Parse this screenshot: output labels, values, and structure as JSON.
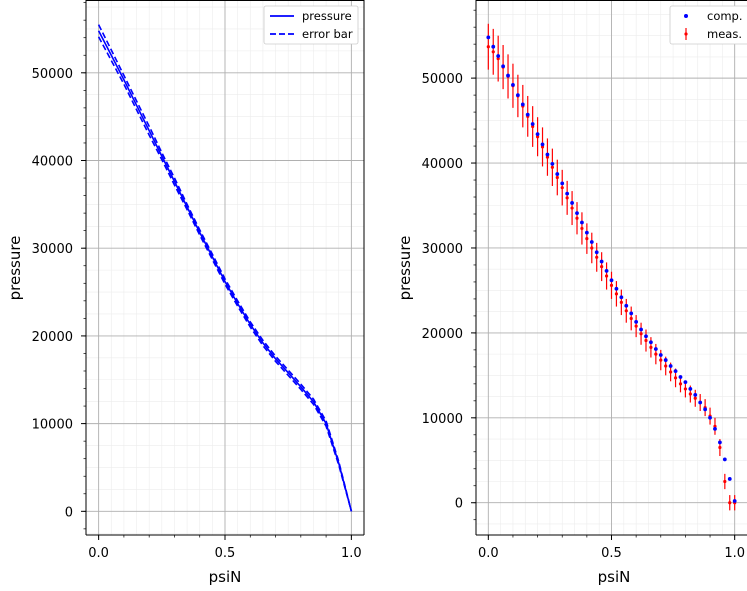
{
  "figure": {
    "background": "#ffffff"
  },
  "chart_data": [
    {
      "type": "line",
      "xlabel": "psiN",
      "ylabel": "pressure",
      "xlim": [
        -0.05,
        1.05
      ],
      "ylim": [
        -2700,
        58300
      ],
      "xticks": [
        0.0,
        0.5,
        1.0
      ],
      "xtick_labels": [
        "0.0",
        "0.5",
        "1.0"
      ],
      "yticks": [
        0,
        10000,
        20000,
        30000,
        40000,
        50000
      ],
      "ytick_labels": [
        "0",
        "10000",
        "20000",
        "30000",
        "40000",
        "50000"
      ],
      "grid": true,
      "legend": {
        "placement": "top-right",
        "entries": [
          "pressure",
          "error bar"
        ]
      },
      "series": [
        {
          "name": "pressure",
          "style": "solid",
          "color": "#0000ff",
          "x": [
            0.0,
            0.05,
            0.1,
            0.15,
            0.2,
            0.25,
            0.3,
            0.35,
            0.4,
            0.45,
            0.5,
            0.55,
            0.6,
            0.65,
            0.7,
            0.75,
            0.8,
            0.85,
            0.9,
            0.95,
            1.0
          ],
          "y": [
            54800,
            52000,
            49200,
            46300,
            43400,
            40500,
            37600,
            34700,
            31800,
            29000,
            26200,
            23700,
            21300,
            19200,
            17400,
            15800,
            14200,
            12500,
            10000,
            5500,
            0
          ]
        },
        {
          "name": "error bar",
          "style": "dashed",
          "color": "#0000ff",
          "x": [
            0.0,
            0.05,
            0.1,
            0.15,
            0.2,
            0.25,
            0.3,
            0.35,
            0.4,
            0.45,
            0.5,
            0.55,
            0.6,
            0.65,
            0.7,
            0.75,
            0.8,
            0.85,
            0.9,
            0.95,
            1.0
          ],
          "y": [
            55500,
            52600,
            49700,
            46800,
            43900,
            40900,
            38000,
            35000,
            32100,
            29300,
            26500,
            24000,
            21600,
            19500,
            17700,
            16100,
            14500,
            12800,
            10300,
            5700,
            0
          ]
        },
        {
          "name": "error bar",
          "style": "dashed",
          "color": "#0000ff",
          "x": [
            0.0,
            0.05,
            0.1,
            0.15,
            0.2,
            0.25,
            0.3,
            0.35,
            0.4,
            0.45,
            0.5,
            0.55,
            0.6,
            0.65,
            0.7,
            0.75,
            0.8,
            0.85,
            0.9,
            0.95,
            1.0
          ],
          "y": [
            54100,
            51400,
            48700,
            45800,
            42900,
            40100,
            37200,
            34400,
            31500,
            28700,
            25900,
            23400,
            21000,
            18900,
            17100,
            15500,
            13900,
            12200,
            9700,
            5300,
            0
          ]
        }
      ]
    },
    {
      "type": "scatter",
      "xlabel": "psiN",
      "ylabel": "pressure",
      "xlim": [
        -0.05,
        1.05
      ],
      "ylim": [
        -3800,
        59200
      ],
      "xticks": [
        0.0,
        0.5,
        1.0
      ],
      "xtick_labels": [
        "0.0",
        "0.5",
        "1.0"
      ],
      "yticks": [
        0,
        10000,
        20000,
        30000,
        40000,
        50000
      ],
      "ytick_labels": [
        "0",
        "10000",
        "20000",
        "30000",
        "40000",
        "50000"
      ],
      "grid": true,
      "legend": {
        "placement": "top-right",
        "entries": [
          "comp.",
          "meas."
        ]
      },
      "comp": {
        "name": "comp.",
        "color": "#0000ff",
        "x": [
          0.0,
          0.02,
          0.04,
          0.06,
          0.08,
          0.1,
          0.12,
          0.14,
          0.16,
          0.18,
          0.2,
          0.22,
          0.24,
          0.26,
          0.28,
          0.3,
          0.32,
          0.34,
          0.36,
          0.38,
          0.4,
          0.42,
          0.44,
          0.46,
          0.48,
          0.5,
          0.52,
          0.54,
          0.56,
          0.58,
          0.6,
          0.62,
          0.64,
          0.66,
          0.68,
          0.7,
          0.72,
          0.74,
          0.76,
          0.78,
          0.8,
          0.82,
          0.84,
          0.86,
          0.88,
          0.9,
          0.92,
          0.94,
          0.96,
          0.98,
          1.0
        ],
        "y": [
          54800,
          53700,
          52600,
          51400,
          50300,
          49200,
          48000,
          46900,
          45700,
          44600,
          43400,
          42200,
          41000,
          39900,
          38700,
          37600,
          36400,
          35300,
          34100,
          33000,
          31800,
          30700,
          29500,
          28400,
          27300,
          26200,
          25200,
          24200,
          23200,
          22300,
          21300,
          20400,
          19600,
          18900,
          18100,
          17400,
          16800,
          16100,
          15500,
          14800,
          14200,
          13400,
          12700,
          11800,
          11000,
          10000,
          8700,
          7100,
          5100,
          2800,
          200
        ]
      },
      "meas": {
        "name": "meas.",
        "color": "#ff0000",
        "x": [
          0.0,
          0.02,
          0.04,
          0.06,
          0.08,
          0.1,
          0.12,
          0.14,
          0.16,
          0.18,
          0.2,
          0.22,
          0.24,
          0.26,
          0.28,
          0.3,
          0.32,
          0.34,
          0.36,
          0.38,
          0.4,
          0.42,
          0.44,
          0.46,
          0.48,
          0.5,
          0.52,
          0.54,
          0.56,
          0.58,
          0.6,
          0.62,
          0.64,
          0.66,
          0.68,
          0.7,
          0.72,
          0.74,
          0.76,
          0.78,
          0.8,
          0.82,
          0.84,
          0.86,
          0.88,
          0.9,
          0.92,
          0.94,
          0.96,
          0.98,
          1.0
        ],
        "y": [
          53700,
          53100,
          52300,
          51300,
          50200,
          49100,
          47900,
          46700,
          45500,
          44300,
          43100,
          41900,
          40700,
          39500,
          38300,
          37100,
          35900,
          34700,
          33500,
          32300,
          31100,
          30000,
          28900,
          27800,
          26700,
          25600,
          24600,
          23600,
          22600,
          21700,
          20800,
          19900,
          19100,
          18300,
          17500,
          16800,
          16100,
          15400,
          14700,
          14000,
          13400,
          12800,
          12300,
          11800,
          11200,
          10200,
          9000,
          6500,
          2500,
          0,
          0
        ],
        "err": [
          2700,
          2700,
          2700,
          2600,
          2600,
          2600,
          2500,
          2500,
          2400,
          2400,
          2300,
          2300,
          2200,
          2200,
          2100,
          2100,
          2000,
          2000,
          1900,
          1900,
          1800,
          1800,
          1700,
          1700,
          1600,
          1600,
          1500,
          1500,
          1400,
          1400,
          1300,
          1300,
          1300,
          1200,
          1200,
          1200,
          1100,
          1100,
          1100,
          1000,
          1000,
          1000,
          1000,
          1000,
          1000,
          1000,
          1000,
          1000,
          900,
          900,
          900
        ]
      }
    }
  ]
}
